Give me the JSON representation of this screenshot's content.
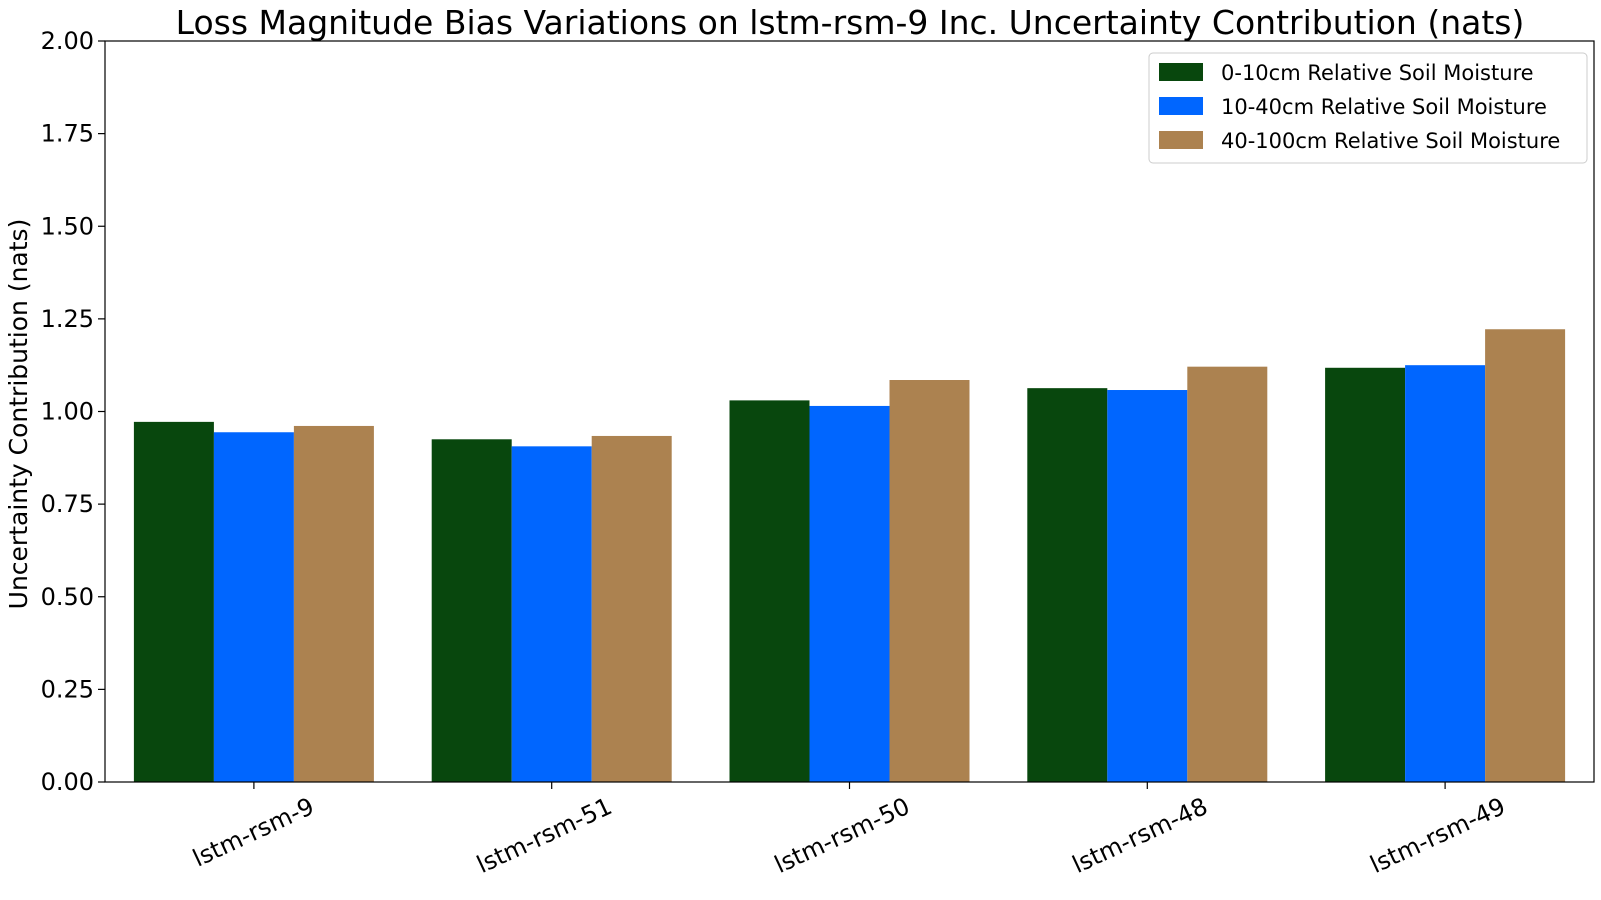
{
  "chart_data": {
    "type": "bar",
    "title": "Loss Magnitude Bias Variations on lstm-rsm-9 Inc. Uncertainty Contribution (nats)",
    "xlabel": "",
    "ylabel": "Uncertainty Contribution (nats)",
    "ylim": [
      0,
      2.0
    ],
    "yticks": [
      "0.00",
      "0.25",
      "0.50",
      "0.75",
      "1.00",
      "1.25",
      "1.50",
      "1.75",
      "2.00"
    ],
    "categories": [
      "lstm-rsm-9",
      "lstm-rsm-51",
      "lstm-rsm-50",
      "lstm-rsm-48",
      "lstm-rsm-49"
    ],
    "series": [
      {
        "name": "0-10cm Relative Soil Moisture",
        "color": "#08470d",
        "values": [
          0.972,
          0.925,
          1.03,
          1.063,
          1.118
        ]
      },
      {
        "name": "10-40cm Relative Soil Moisture",
        "color": "#0066ff",
        "values": [
          0.944,
          0.906,
          1.015,
          1.058,
          1.125
        ]
      },
      {
        "name": "40-100cm Relative Soil Moisture",
        "color": "#ac8250",
        "values": [
          0.961,
          0.934,
          1.085,
          1.121,
          1.222
        ]
      }
    ],
    "legend_position": "upper-right",
    "grid": false
  }
}
